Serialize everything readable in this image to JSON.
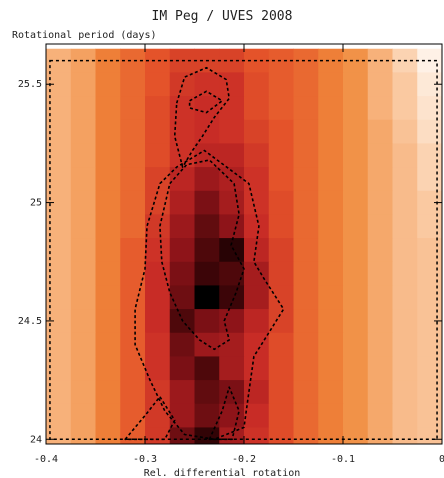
{
  "chart_data": {
    "type": "heatmap",
    "title": "IM Peg / UVES 2008",
    "ylabel": "Rotational period (days)",
    "xlabel": "Rel. differential rotation",
    "xlim": [
      -0.4,
      0.0
    ],
    "ylim": [
      23.98,
      25.67
    ],
    "x_ticks": [
      -0.4,
      -0.3,
      -0.2,
      -0.1,
      0
    ],
    "x_tick_labels": [
      "-0.4",
      "-0.3",
      "-0.2",
      "-0.1",
      "0"
    ],
    "y_ticks": [
      24,
      24.5,
      25,
      25.5
    ],
    "y_tick_labels": [
      "24",
      "24.5",
      "25",
      "25.5"
    ],
    "grid_x": [
      -0.4,
      -0.375,
      -0.35,
      -0.325,
      -0.3,
      -0.275,
      -0.25,
      -0.225,
      -0.2,
      -0.175,
      -0.15,
      -0.125,
      -0.1,
      -0.075,
      -0.05,
      -0.025
    ],
    "grid_y": [
      25.6,
      25.5,
      25.4,
      25.3,
      25.2,
      25.1,
      25.0,
      24.9,
      24.8,
      24.7,
      24.6,
      24.5,
      24.4,
      24.3,
      24.2,
      24.1,
      24.0
    ],
    "values_note_scale": "relative 0 (lowest) to 1 (highest)",
    "values": [
      [
        0.25,
        0.3,
        0.4,
        0.45,
        0.5,
        0.55,
        0.55,
        0.55,
        0.5,
        0.48,
        0.45,
        0.4,
        0.35,
        0.25,
        0.15,
        0.05
      ],
      [
        0.25,
        0.3,
        0.4,
        0.45,
        0.5,
        0.58,
        0.6,
        0.6,
        0.52,
        0.48,
        0.45,
        0.4,
        0.35,
        0.25,
        0.18,
        0.08
      ],
      [
        0.25,
        0.3,
        0.4,
        0.45,
        0.52,
        0.6,
        0.62,
        0.6,
        0.52,
        0.48,
        0.45,
        0.4,
        0.35,
        0.25,
        0.18,
        0.1
      ],
      [
        0.25,
        0.3,
        0.4,
        0.45,
        0.52,
        0.6,
        0.62,
        0.6,
        0.55,
        0.5,
        0.45,
        0.4,
        0.35,
        0.28,
        0.2,
        0.12
      ],
      [
        0.25,
        0.3,
        0.4,
        0.45,
        0.52,
        0.6,
        0.65,
        0.65,
        0.58,
        0.5,
        0.45,
        0.4,
        0.35,
        0.28,
        0.22,
        0.15
      ],
      [
        0.25,
        0.3,
        0.4,
        0.45,
        0.55,
        0.65,
        0.72,
        0.68,
        0.6,
        0.5,
        0.45,
        0.4,
        0.35,
        0.28,
        0.22,
        0.15
      ],
      [
        0.25,
        0.3,
        0.4,
        0.45,
        0.55,
        0.68,
        0.78,
        0.7,
        0.6,
        0.52,
        0.45,
        0.4,
        0.35,
        0.28,
        0.22,
        0.18
      ],
      [
        0.25,
        0.3,
        0.4,
        0.45,
        0.58,
        0.72,
        0.82,
        0.75,
        0.62,
        0.52,
        0.45,
        0.4,
        0.35,
        0.28,
        0.22,
        0.18
      ],
      [
        0.25,
        0.3,
        0.4,
        0.48,
        0.6,
        0.75,
        0.85,
        0.92,
        0.65,
        0.55,
        0.45,
        0.4,
        0.35,
        0.28,
        0.22,
        0.2
      ],
      [
        0.25,
        0.3,
        0.4,
        0.48,
        0.62,
        0.78,
        0.88,
        0.85,
        0.7,
        0.55,
        0.45,
        0.4,
        0.35,
        0.28,
        0.22,
        0.2
      ],
      [
        0.25,
        0.3,
        0.4,
        0.48,
        0.62,
        0.8,
        1.0,
        0.88,
        0.7,
        0.55,
        0.45,
        0.4,
        0.35,
        0.28,
        0.22,
        0.2
      ],
      [
        0.25,
        0.3,
        0.4,
        0.48,
        0.62,
        0.85,
        0.78,
        0.75,
        0.65,
        0.55,
        0.45,
        0.4,
        0.35,
        0.28,
        0.22,
        0.2
      ],
      [
        0.25,
        0.3,
        0.4,
        0.48,
        0.6,
        0.8,
        0.72,
        0.7,
        0.62,
        0.52,
        0.45,
        0.4,
        0.35,
        0.28,
        0.22,
        0.2
      ],
      [
        0.25,
        0.3,
        0.4,
        0.48,
        0.6,
        0.78,
        0.85,
        0.7,
        0.62,
        0.52,
        0.45,
        0.4,
        0.35,
        0.28,
        0.22,
        0.2
      ],
      [
        0.25,
        0.3,
        0.4,
        0.48,
        0.58,
        0.72,
        0.82,
        0.78,
        0.65,
        0.52,
        0.45,
        0.4,
        0.35,
        0.28,
        0.22,
        0.2
      ],
      [
        0.25,
        0.3,
        0.4,
        0.48,
        0.58,
        0.72,
        0.8,
        0.75,
        0.62,
        0.52,
        0.45,
        0.4,
        0.35,
        0.28,
        0.22,
        0.2
      ],
      [
        0.25,
        0.3,
        0.4,
        0.48,
        0.58,
        0.8,
        0.9,
        0.7,
        0.6,
        0.52,
        0.45,
        0.4,
        0.35,
        0.28,
        0.22,
        0.2
      ]
    ],
    "colormap": [
      "#ffffff",
      "#fcdcc0",
      "#f7b17a",
      "#f08a3c",
      "#e4532a",
      "#c72a26",
      "#8e1419",
      "#3e0508",
      "#000000"
    ],
    "contours": [
      {
        "level": "inner",
        "points": [
          [
            -0.255,
            25.43
          ],
          [
            -0.238,
            25.47
          ],
          [
            -0.222,
            25.43
          ],
          [
            -0.238,
            25.38
          ],
          [
            -0.255,
            25.4
          ]
        ]
      },
      {
        "level": "upper",
        "points": [
          [
            -0.268,
            25.42
          ],
          [
            -0.26,
            25.53
          ],
          [
            -0.238,
            25.57
          ],
          [
            -0.218,
            25.52
          ],
          [
            -0.215,
            25.44
          ],
          [
            -0.23,
            25.36
          ],
          [
            -0.242,
            25.28
          ],
          [
            -0.252,
            25.22
          ],
          [
            -0.262,
            25.15
          ],
          [
            -0.27,
            25.28
          ]
        ]
      },
      {
        "level": "middle",
        "points": [
          [
            -0.275,
            25.08
          ],
          [
            -0.258,
            25.16
          ],
          [
            -0.235,
            25.18
          ],
          [
            -0.21,
            25.08
          ],
          [
            -0.205,
            24.95
          ],
          [
            -0.213,
            24.82
          ],
          [
            -0.2,
            24.72
          ],
          [
            -0.208,
            24.62
          ],
          [
            -0.22,
            24.5
          ],
          [
            -0.215,
            24.42
          ],
          [
            -0.23,
            24.38
          ],
          [
            -0.245,
            24.42
          ],
          [
            -0.262,
            24.5
          ],
          [
            -0.275,
            24.62
          ],
          [
            -0.283,
            24.75
          ],
          [
            -0.285,
            24.9
          ]
        ]
      },
      {
        "level": "outer",
        "points": [
          [
            -0.285,
            25.08
          ],
          [
            -0.268,
            25.15
          ],
          [
            -0.24,
            25.22
          ],
          [
            -0.195,
            25.08
          ],
          [
            -0.185,
            24.9
          ],
          [
            -0.19,
            24.75
          ],
          [
            -0.18,
            24.68
          ],
          [
            -0.16,
            24.55
          ],
          [
            -0.175,
            24.45
          ],
          [
            -0.19,
            24.35
          ],
          [
            -0.195,
            24.2
          ],
          [
            -0.2,
            24.05
          ],
          [
            -0.23,
            24.0
          ],
          [
            -0.26,
            24.02
          ],
          [
            -0.28,
            24.12
          ],
          [
            -0.295,
            24.25
          ],
          [
            -0.31,
            24.4
          ],
          [
            -0.31,
            24.55
          ],
          [
            -0.3,
            24.72
          ],
          [
            -0.298,
            24.9
          ]
        ]
      },
      {
        "level": "lower-left",
        "points": [
          [
            -0.32,
            24.0
          ],
          [
            -0.3,
            24.1
          ],
          [
            -0.285,
            24.18
          ],
          [
            -0.27,
            24.08
          ],
          [
            -0.28,
            24.0
          ]
        ]
      },
      {
        "level": "lower-right",
        "points": [
          [
            -0.235,
            24.0
          ],
          [
            -0.222,
            24.12
          ],
          [
            -0.215,
            24.22
          ],
          [
            -0.205,
            24.12
          ],
          [
            -0.212,
            24.0
          ]
        ]
      }
    ],
    "dashed_frame": {
      "x": [
        -0.396,
        -0.005
      ],
      "y": [
        24.0,
        25.6
      ]
    },
    "grid": false,
    "legend": "none"
  }
}
